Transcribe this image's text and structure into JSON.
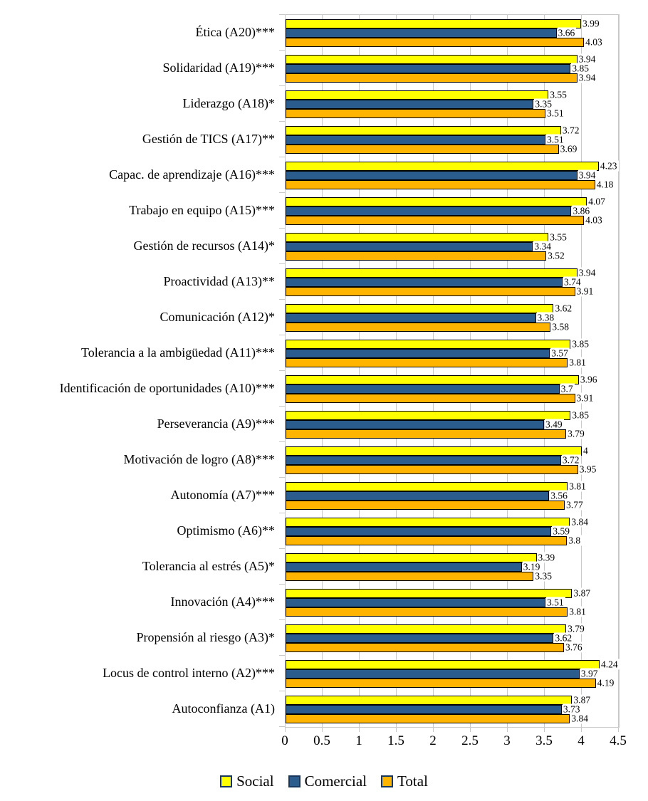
{
  "chart_data": {
    "type": "bar",
    "orientation": "horizontal",
    "title": "",
    "xlabel": "",
    "ylabel": "",
    "xlim": [
      0,
      4.5
    ],
    "x_ticks": [
      "0",
      "0.5",
      "1",
      "1.5",
      "2",
      "2.5",
      "3",
      "3.5",
      "4",
      "4.5"
    ],
    "grid": "vertical-major-0.5",
    "legend_position": "bottom",
    "categories": [
      "Ética (A20)***",
      "Solidaridad (A19)***",
      "Liderazgo (A18)*",
      "Gestión de TICS (A17)**",
      "Capac. de aprendizaje (A16)***",
      "Trabajo en equipo (A15)***",
      "Gestión de recursos (A14)*",
      "Proactividad (A13)**",
      "Comunicación (A12)*",
      "Tolerancia a la ambigüedad (A11)***",
      "Identificación de oportunidades (A10)***",
      "Perseverancia (A9)***",
      "Motivación de logro (A8)***",
      "Autonomía (A7)***",
      "Optimismo (A6)**",
      "Tolerancia al estrés (A5)*",
      "Innovación (A4)***",
      "Propensión al riesgo (A3)*",
      "Locus de control interno (A2)***",
      "Autoconfianza (A1)"
    ],
    "series": [
      {
        "name": "Social",
        "color": "#FFFF00",
        "values": [
          3.99,
          3.94,
          3.55,
          3.72,
          4.23,
          4.07,
          3.55,
          3.94,
          3.62,
          3.85,
          3.96,
          3.85,
          4,
          3.81,
          3.84,
          3.39,
          3.87,
          3.79,
          4.24,
          3.87
        ]
      },
      {
        "name": "Comercial",
        "color": "#2B5C8E",
        "values": [
          3.66,
          3.85,
          3.35,
          3.51,
          3.94,
          3.86,
          3.34,
          3.74,
          3.38,
          3.57,
          3.7,
          3.49,
          3.72,
          3.56,
          3.59,
          3.19,
          3.51,
          3.62,
          3.97,
          3.73
        ]
      },
      {
        "name": "Total",
        "color": "#FFB400",
        "values": [
          4.03,
          3.94,
          3.51,
          3.69,
          4.18,
          4.03,
          3.52,
          3.91,
          3.58,
          3.81,
          3.91,
          3.79,
          3.95,
          3.77,
          3.8,
          3.35,
          3.81,
          3.76,
          4.19,
          3.84
        ]
      }
    ],
    "colors": {
      "bar_border": "#000000",
      "gridline": "#C9C9C9",
      "legend_swatch_border": "#17375E",
      "text": "#000000"
    }
  }
}
